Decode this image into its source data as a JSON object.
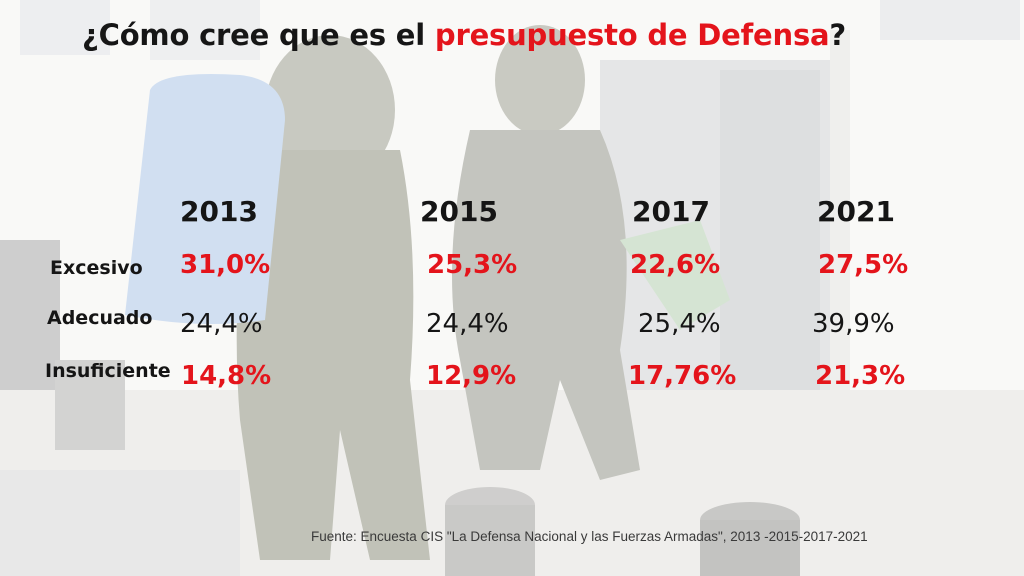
{
  "title": {
    "prefix": "¿Cómo cree que es el ",
    "highlight": "presupuesto de Defensa",
    "suffix": "?"
  },
  "years": [
    "2013",
    "2015",
    "2017",
    "2021"
  ],
  "rows": [
    {
      "label": "Excesivo",
      "values": [
        "31,0%",
        "25,3%",
        "22,6%",
        "27,5%"
      ]
    },
    {
      "label": "Adecuado",
      "values": [
        "24,4%",
        "24,4%",
        "25,4%",
        "39,9%"
      ]
    },
    {
      "label": "Insuficiente",
      "values": [
        "14,8%",
        "12,9%",
        "17,76%",
        "21,3%"
      ]
    }
  ],
  "source": "Fuente: Encuesta CIS \"La Defensa Nacional y las Fuerzas Armadas\", 2013 -2015-2017-2021",
  "colors": {
    "highlight": "#e4141b",
    "text": "#151515"
  }
}
